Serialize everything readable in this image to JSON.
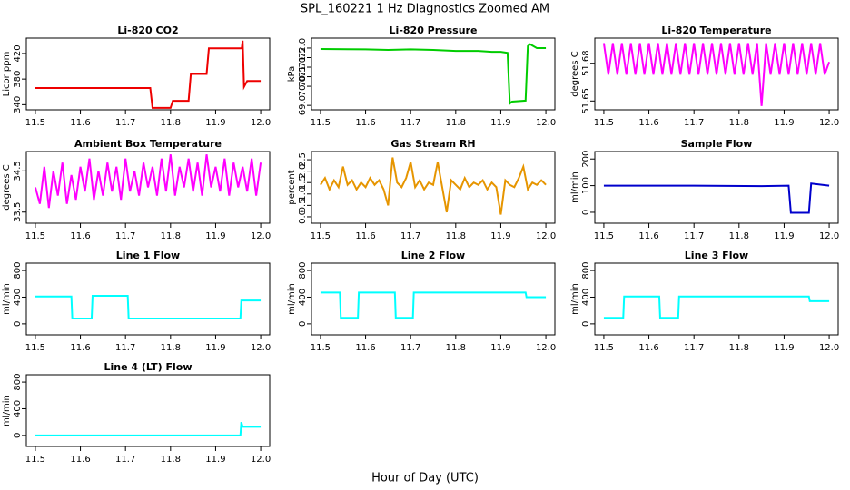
{
  "title": "SPL_160221 1 Hz Diagnostics Zoomed AM",
  "xlabel": "Hour of Day (UTC)",
  "chart_data": [
    {
      "type": "line",
      "title": "Li-820 CO2",
      "ylabel": "Licor ppm",
      "color": "#ee0000",
      "x": [
        11.5,
        11.755,
        11.76,
        11.8,
        11.805,
        11.84,
        11.845,
        11.88,
        11.885,
        11.958,
        11.96,
        11.963,
        11.97,
        12.0
      ],
      "values": [
        366,
        366,
        335,
        335,
        346,
        346,
        388,
        388,
        428,
        428,
        440,
        368,
        377,
        377
      ],
      "xlim": [
        11.48,
        12.02
      ],
      "xticks": [
        11.5,
        11.6,
        11.7,
        11.8,
        11.9,
        {
          "value": 12,
          "label": "12.0"
        }
      ],
      "ylim": [
        332,
        444
      ],
      "yticks": [
        340,
        380,
        420
      ]
    },
    {
      "type": "line",
      "title": "Li-820 Pressure",
      "ylabel": "kPa",
      "color": "#00cc00",
      "x": [
        11.5,
        11.6,
        11.65,
        11.7,
        11.75,
        11.8,
        11.85,
        11.88,
        11.9,
        11.915,
        11.92,
        11.925,
        11.955,
        11.96,
        11.965,
        11.98,
        12.0
      ],
      "values": [
        71.95,
        71.93,
        71.9,
        71.93,
        71.9,
        71.85,
        71.85,
        71.8,
        71.8,
        71.75,
        69.1,
        69.2,
        69.25,
        72.1,
        72.2,
        72.0,
        72.0
      ],
      "xlim": [
        11.48,
        12.02
      ],
      "xticks": [
        11.5,
        11.6,
        11.7,
        11.8,
        11.9,
        {
          "value": 12,
          "label": "12.0"
        }
      ],
      "ylim": [
        68.77,
        72.52
      ],
      "yticks": [
        {
          "value": 69,
          "label": "69.0"
        },
        {
          "value": 70,
          "label": "70.0"
        },
        70.5,
        {
          "value": 71,
          "label": "71.0"
        },
        71.5,
        {
          "value": 72,
          "label": "72.0"
        }
      ]
    },
    {
      "type": "line",
      "title": "Li-820 Temperature",
      "ylabel": "degrees C",
      "color": "#ff00ff",
      "x": [
        11.5,
        11.51,
        11.52,
        11.53,
        11.54,
        11.55,
        11.56,
        11.57,
        11.58,
        11.59,
        11.6,
        11.61,
        11.62,
        11.63,
        11.64,
        11.65,
        11.66,
        11.67,
        11.68,
        11.69,
        11.7,
        11.71,
        11.72,
        11.73,
        11.74,
        11.75,
        11.76,
        11.77,
        11.78,
        11.79,
        11.8,
        11.81,
        11.82,
        11.83,
        11.84,
        11.85,
        11.86,
        11.87,
        11.88,
        11.89,
        11.9,
        11.91,
        11.92,
        11.93,
        11.94,
        11.95,
        11.96,
        11.97,
        11.98,
        11.99,
        12.0
      ],
      "values": [
        51.696,
        51.671,
        51.696,
        51.671,
        51.696,
        51.671,
        51.696,
        51.671,
        51.696,
        51.671,
        51.696,
        51.671,
        51.696,
        51.671,
        51.696,
        51.671,
        51.696,
        51.671,
        51.696,
        51.671,
        51.696,
        51.671,
        51.696,
        51.671,
        51.696,
        51.671,
        51.696,
        51.671,
        51.696,
        51.671,
        51.696,
        51.671,
        51.696,
        51.671,
        51.696,
        51.646,
        51.696,
        51.671,
        51.696,
        51.671,
        51.696,
        51.671,
        51.696,
        51.671,
        51.696,
        51.671,
        51.696,
        51.671,
        51.696,
        51.671,
        51.681
      ],
      "xlim": [
        11.48,
        12.02
      ],
      "xticks": [
        11.5,
        11.6,
        11.7,
        11.8,
        11.9,
        {
          "value": 12,
          "label": "12.0"
        }
      ],
      "ylim": [
        51.643,
        51.7
      ],
      "yticks": [
        51.65,
        51.68
      ]
    },
    {
      "type": "line",
      "title": "Ambient Box Temperature",
      "ylabel": "degrees C",
      "color": "#ff00ff",
      "x": [
        11.5,
        11.51,
        11.52,
        11.53,
        11.54,
        11.55,
        11.56,
        11.57,
        11.58,
        11.59,
        11.6,
        11.61,
        11.62,
        11.63,
        11.64,
        11.65,
        11.66,
        11.67,
        11.68,
        11.69,
        11.7,
        11.71,
        11.72,
        11.73,
        11.74,
        11.75,
        11.76,
        11.77,
        11.78,
        11.79,
        11.8,
        11.81,
        11.82,
        11.83,
        11.84,
        11.85,
        11.86,
        11.87,
        11.88,
        11.89,
        11.9,
        11.91,
        11.92,
        11.93,
        11.94,
        11.95,
        11.96,
        11.97,
        11.98,
        11.99,
        12.0
      ],
      "values": [
        34.1,
        33.7,
        34.6,
        33.6,
        34.5,
        33.9,
        34.7,
        33.7,
        34.4,
        33.8,
        34.6,
        34.0,
        34.8,
        33.8,
        34.5,
        33.9,
        34.7,
        34.0,
        34.6,
        33.8,
        34.8,
        34.0,
        34.5,
        33.9,
        34.7,
        34.1,
        34.6,
        33.9,
        34.8,
        34.0,
        34.9,
        33.9,
        34.6,
        34.1,
        34.8,
        34.0,
        34.7,
        33.9,
        34.9,
        34.1,
        34.6,
        34.0,
        34.8,
        33.9,
        34.7,
        34.1,
        34.6,
        34.0,
        34.8,
        33.9,
        34.7
      ],
      "xlim": [
        11.48,
        12.02
      ],
      "xticks": [
        11.5,
        11.6,
        11.7,
        11.8,
        11.9,
        {
          "value": 12,
          "label": "12.0"
        }
      ],
      "ylim": [
        33.23,
        34.97
      ],
      "yticks": [
        33.5,
        34.5
      ]
    },
    {
      "type": "line",
      "title": "Gas Stream RH",
      "ylabel": "percent",
      "color": "#e69500",
      "x": [
        11.5,
        11.51,
        11.52,
        11.53,
        11.54,
        11.55,
        11.56,
        11.57,
        11.58,
        11.59,
        11.6,
        11.61,
        11.62,
        11.63,
        11.64,
        11.65,
        11.66,
        11.67,
        11.68,
        11.69,
        11.7,
        11.71,
        11.72,
        11.73,
        11.74,
        11.75,
        11.76,
        11.77,
        11.78,
        11.79,
        11.8,
        11.81,
        11.82,
        11.83,
        11.84,
        11.85,
        11.86,
        11.87,
        11.88,
        11.89,
        11.9,
        11.91,
        11.92,
        11.93,
        11.94,
        11.95,
        11.96,
        11.97,
        11.98,
        11.99,
        12.0
      ],
      "values": [
        1.4,
        1.7,
        1.2,
        1.6,
        1.3,
        2.2,
        1.4,
        1.6,
        1.2,
        1.5,
        1.3,
        1.7,
        1.4,
        1.6,
        1.2,
        0.5,
        2.6,
        1.5,
        1.3,
        1.7,
        2.4,
        1.3,
        1.6,
        1.2,
        1.5,
        1.4,
        2.4,
        1.3,
        0.2,
        1.6,
        1.4,
        1.2,
        1.7,
        1.3,
        1.5,
        1.4,
        1.6,
        1.2,
        1.5,
        1.3,
        0.1,
        1.6,
        1.4,
        1.3,
        1.7,
        2.2,
        1.2,
        1.5,
        1.4,
        1.6,
        1.4
      ],
      "xlim": [
        11.48,
        12.02
      ],
      "xticks": [
        11.5,
        11.6,
        11.7,
        11.8,
        11.9,
        {
          "value": 12,
          "label": "12.0"
        }
      ],
      "ylim": [
        -0.28,
        2.86
      ],
      "yticks": [
        {
          "value": 0,
          "label": "0.0"
        },
        0.5,
        {
          "value": 1,
          "label": "1.0"
        },
        1.5,
        {
          "value": 2,
          "label": "2.0"
        },
        2.5
      ]
    },
    {
      "type": "line",
      "title": "Sample Flow",
      "ylabel": "ml/min",
      "color": "#0000cc",
      "x": [
        11.5,
        11.7,
        11.85,
        11.91,
        11.915,
        11.955,
        11.96,
        12.0
      ],
      "values": [
        100,
        100,
        98,
        100,
        -2,
        -2,
        108,
        100
      ],
      "xlim": [
        11.48,
        12.02
      ],
      "xticks": [
        11.5,
        11.6,
        11.7,
        11.8,
        11.9,
        {
          "value": 12,
          "label": "12.0"
        }
      ],
      "ylim": [
        -41,
        228
      ],
      "yticks": [
        0,
        100,
        200
      ]
    },
    {
      "type": "line",
      "title": "Line 1 Flow",
      "ylabel": "ml/min",
      "color": "#00ffff",
      "x": [
        11.5,
        11.58,
        11.582,
        11.625,
        11.627,
        11.705,
        11.707,
        11.955,
        11.957,
        12.0
      ],
      "values": [
        410,
        410,
        80,
        80,
        420,
        420,
        80,
        80,
        350,
        350
      ],
      "xlim": [
        11.48,
        12.02
      ],
      "xticks": [
        11.5,
        11.6,
        11.7,
        11.8,
        11.9,
        {
          "value": 12,
          "label": "12.0"
        }
      ],
      "ylim": [
        -165,
        910
      ],
      "yticks": [
        0,
        400,
        800
      ]
    },
    {
      "type": "line",
      "title": "Line 2 Flow",
      "ylabel": "ml/min",
      "color": "#00ffff",
      "x": [
        11.5,
        11.543,
        11.545,
        11.583,
        11.585,
        11.665,
        11.667,
        11.705,
        11.707,
        11.955,
        11.957,
        12.0
      ],
      "values": [
        470,
        470,
        90,
        90,
        470,
        470,
        90,
        90,
        470,
        470,
        400,
        400
      ],
      "xlim": [
        11.48,
        12.02
      ],
      "xticks": [
        11.5,
        11.6,
        11.7,
        11.8,
        11.9,
        {
          "value": 12,
          "label": "12.0"
        }
      ],
      "ylim": [
        -165,
        910
      ],
      "yticks": [
        0,
        400,
        800
      ]
    },
    {
      "type": "line",
      "title": "Line 3 Flow",
      "ylabel": "ml/min",
      "color": "#00ffff",
      "x": [
        11.5,
        11.543,
        11.545,
        11.623,
        11.625,
        11.665,
        11.667,
        11.955,
        11.957,
        12.0
      ],
      "values": [
        90,
        90,
        410,
        410,
        90,
        90,
        410,
        410,
        340,
        340
      ],
      "xlim": [
        11.48,
        12.02
      ],
      "xticks": [
        11.5,
        11.6,
        11.7,
        11.8,
        11.9,
        {
          "value": 12,
          "label": "12.0"
        }
      ],
      "ylim": [
        -165,
        910
      ],
      "yticks": [
        0,
        400,
        800
      ]
    },
    {
      "type": "line",
      "title": "Line 4 (LT) Flow",
      "ylabel": "ml/min",
      "color": "#00ffff",
      "x": [
        11.5,
        11.955,
        11.957,
        11.96,
        12.0
      ],
      "values": [
        0,
        0,
        200,
        130,
        130
      ],
      "xlim": [
        11.48,
        12.02
      ],
      "xticks": [
        11.5,
        11.6,
        11.7,
        11.8,
        11.9,
        {
          "value": 12,
          "label": "12.0"
        }
      ],
      "ylim": [
        -165,
        910
      ],
      "yticks": [
        0,
        400,
        800
      ]
    }
  ]
}
